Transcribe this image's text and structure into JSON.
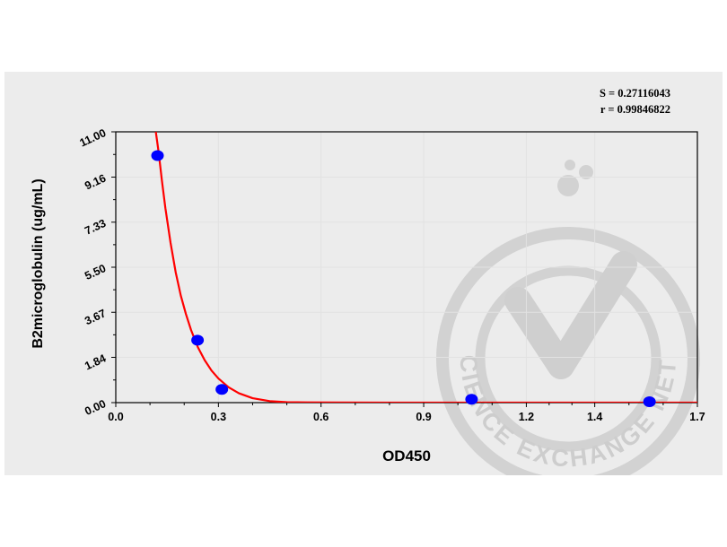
{
  "stats": {
    "s_text": "S = 0.27116043",
    "r_text": "r = 0.99846822"
  },
  "watermark": {
    "text": "THE SCIENCE EXCHANGE NETWORK",
    "color": "#d0d0d0"
  },
  "chart_data": {
    "type": "scatter",
    "xlabel": "OD450",
    "ylabel": "B2microglobulin (ug/mL)",
    "xlim": [
      0,
      1.7
    ],
    "ylim": [
      0,
      11.0
    ],
    "x_ticks": [
      0.0,
      0.3,
      0.6,
      0.9,
      1.2,
      1.4,
      1.7
    ],
    "x_tick_labels": [
      "0.0",
      "0.3",
      "0.6",
      "0.9",
      "1.2",
      "1.4",
      "1.7"
    ],
    "y_ticks": [
      0.0,
      1.84,
      3.67,
      5.5,
      7.33,
      9.16,
      11.0
    ],
    "y_tick_labels": [
      "0.00",
      "1.84",
      "3.67",
      "5.50",
      "7.33",
      "9.16",
      "11.00"
    ],
    "grid": true,
    "points": {
      "color": "#0000ff",
      "x": [
        0.122,
        0.239,
        0.31,
        1.04,
        1.56
      ],
      "y": [
        10.0,
        2.5,
        0.5,
        0.1,
        0.0
      ]
    },
    "fit_curve": {
      "color": "#ff0000",
      "x": [
        0.117,
        0.125,
        0.135,
        0.145,
        0.16,
        0.175,
        0.19,
        0.205,
        0.22,
        0.24,
        0.26,
        0.28,
        0.3,
        0.33,
        0.36,
        0.4,
        0.45,
        0.5,
        0.56,
        0.65,
        0.8,
        1.0,
        1.3,
        1.7
      ],
      "y": [
        11.0,
        10.2,
        9.0,
        7.9,
        6.5,
        5.3,
        4.35,
        3.6,
        2.95,
        2.25,
        1.72,
        1.3,
        0.98,
        0.62,
        0.38,
        0.18,
        0.06,
        0.02,
        0.008,
        0.004,
        0.002,
        0.001,
        0.0005,
        0.0002
      ]
    }
  }
}
